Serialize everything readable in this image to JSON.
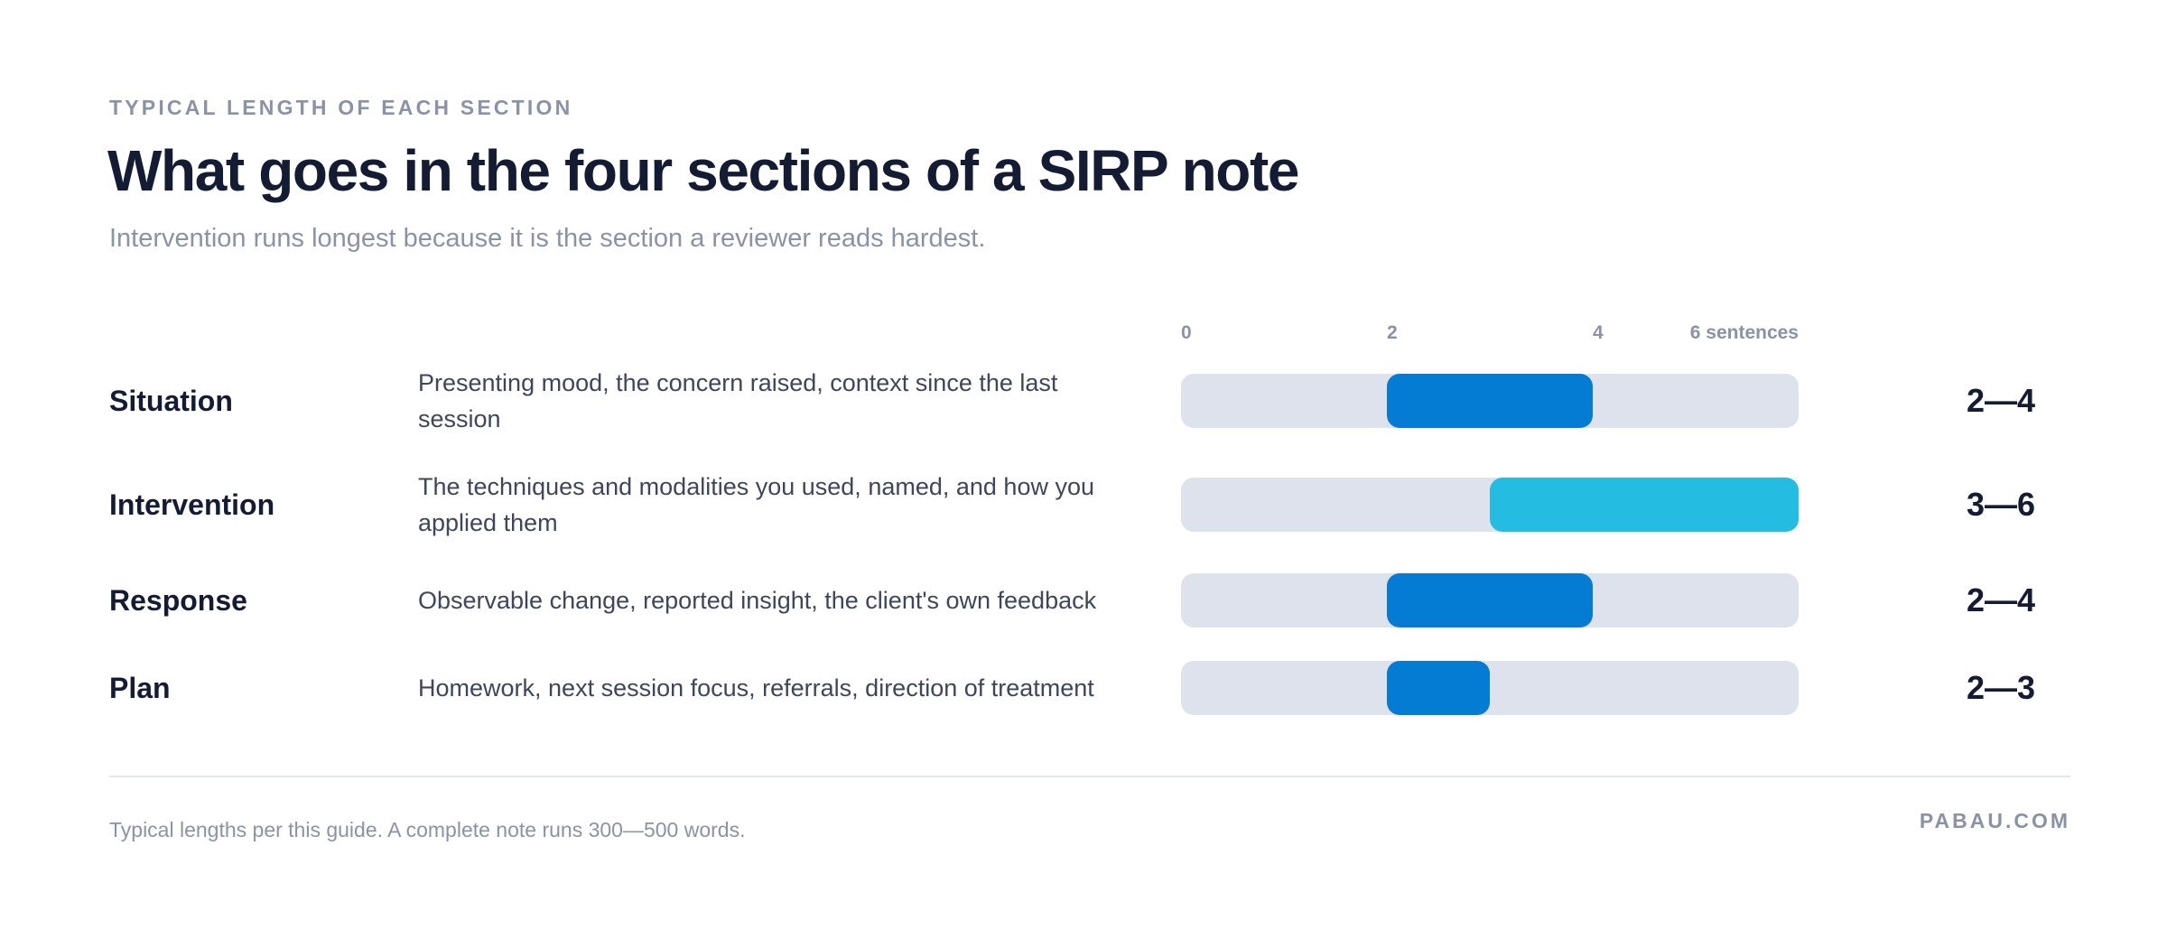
{
  "header": {
    "eyebrow": "TYPICAL LENGTH OF EACH SECTION",
    "title": "What goes in the four sections of a SIRP note",
    "subtitle": "Intervention runs longest because it is the section a reviewer reads hardest."
  },
  "footer": {
    "note": "Typical lengths per this guide. A complete note runs 300—500 words.",
    "brand": "PABAU.COM"
  },
  "colors": {
    "primary_bar": "#057cd4",
    "highlight_bar": "#25bce2",
    "track": "#dee2ec",
    "text_dark": "#141c34",
    "text_muted": "#8a93a6"
  },
  "chart_data": {
    "type": "bar",
    "orientation": "horizontal-range",
    "xlim": [
      0,
      6
    ],
    "ticks": [
      {
        "value": 0,
        "label": "0"
      },
      {
        "value": 2,
        "label": "2"
      },
      {
        "value": 4,
        "label": "4"
      },
      {
        "value": 6,
        "label": "6 sentences"
      }
    ],
    "rows": [
      {
        "label": "Situation",
        "description": "Presenting mood, the concern raised, context since the last session",
        "min": 2,
        "max": 4,
        "range_label": "2—4",
        "highlight": false
      },
      {
        "label": "Intervention",
        "description": "The techniques and modalities you used, named, and how you applied them",
        "min": 3,
        "max": 6,
        "range_label": "3—6",
        "highlight": true
      },
      {
        "label": "Response",
        "description": "Observable change, reported insight, the client's own feedback",
        "min": 2,
        "max": 4,
        "range_label": "2—4",
        "highlight": false
      },
      {
        "label": "Plan",
        "description": "Homework, next session focus, referrals, direction of treatment",
        "min": 2,
        "max": 3,
        "range_label": "2—3",
        "highlight": false
      }
    ]
  }
}
